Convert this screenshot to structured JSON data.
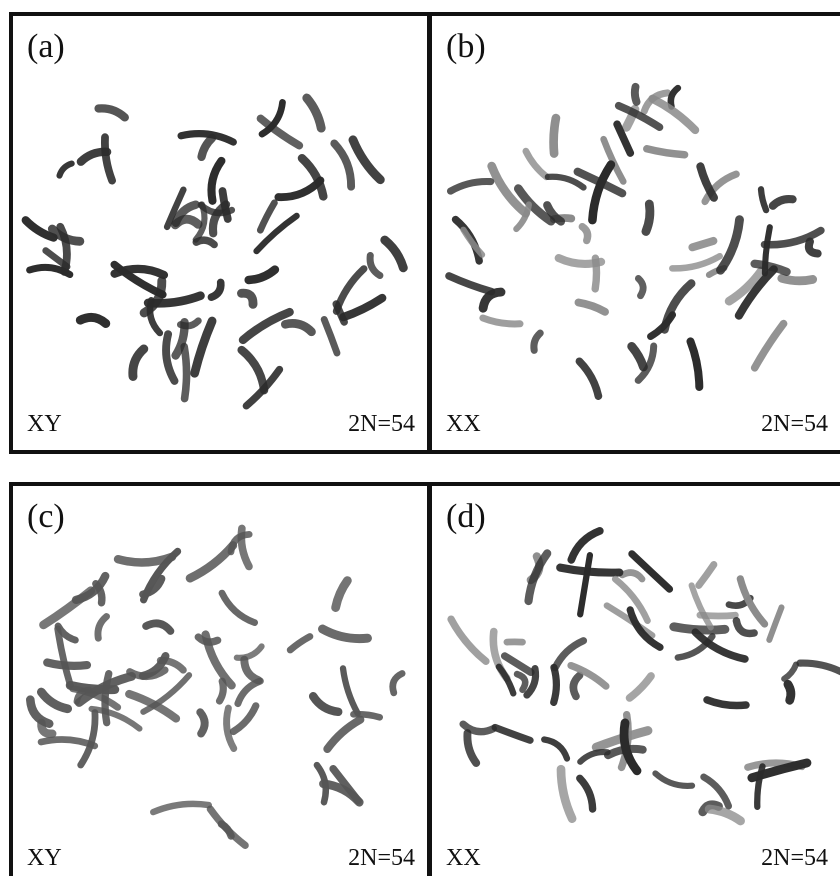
{
  "panels": [
    {
      "id": "a",
      "label": "(a)",
      "sex": "XY",
      "count": "2N=54"
    },
    {
      "id": "b",
      "label": "(b)",
      "sex": "XX",
      "count": "2N=54"
    },
    {
      "id": "c",
      "label": "(c)",
      "sex": "XY",
      "count": "2N=54"
    },
    {
      "id": "d",
      "label": "(d)",
      "sex": "XX",
      "count": "2N=54"
    }
  ],
  "colors": {
    "border": "#111111",
    "chromosome_dark": "#2b2b2b",
    "chromosome_light": "#8a8a8a"
  }
}
